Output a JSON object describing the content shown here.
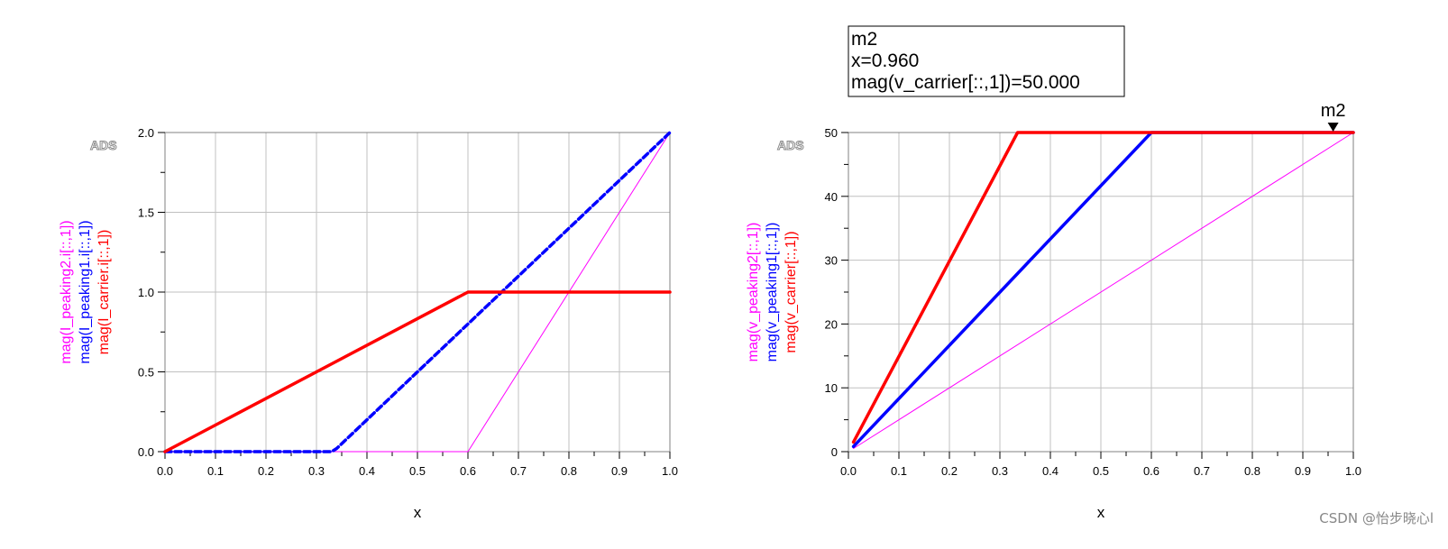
{
  "watermark": "CSDN @怡步晓心l",
  "chart_data": [
    {
      "type": "line",
      "logo": "ADS",
      "xlabel": "x",
      "ylabels": [
        "mag(I_peaking2.i[::,1])",
        "mag(I_peaking1.i[::,1])",
        "mag(I_carrier.i[::,1])"
      ],
      "xlim": [
        0.0,
        1.0
      ],
      "ylim": [
        0.0,
        2.0
      ],
      "xticks": [
        "0.0",
        "0.1",
        "0.2",
        "0.3",
        "0.4",
        "0.5",
        "0.6",
        "0.7",
        "0.8",
        "0.9",
        "1.0"
      ],
      "yticks": [
        "0.0",
        "0.5",
        "1.0",
        "1.5",
        "2.0"
      ],
      "grid": true,
      "series": [
        {
          "name": "mag(I_peaking2.i[::,1])",
          "color": "#ff00ff",
          "style": "thin",
          "x": [
            0.0,
            0.6,
            1.0
          ],
          "y": [
            0.0,
            0.0,
            2.0
          ]
        },
        {
          "name": "mag(I_peaking1.i[::,1])",
          "color": "#0000ff",
          "style": "dashed",
          "x": [
            0.0,
            0.33,
            0.34,
            1.0
          ],
          "y": [
            0.0,
            0.0,
            0.02,
            2.0
          ]
        },
        {
          "name": "mag(I_carrier.i[::,1])",
          "color": "#ff0000",
          "style": "thick",
          "x": [
            0.0,
            0.6,
            1.0
          ],
          "y": [
            0.0,
            1.0,
            1.0
          ]
        }
      ]
    },
    {
      "type": "line",
      "logo": "ADS",
      "xlabel": "x",
      "ylabels": [
        "mag(v_peaking2[::,1])",
        "mag(v_peaking1[::,1])",
        "mag(v_carrier[::,1])"
      ],
      "xlim": [
        0.0,
        1.0
      ],
      "ylim": [
        0,
        50
      ],
      "xticks": [
        "0.0",
        "0.1",
        "0.2",
        "0.3",
        "0.4",
        "0.5",
        "0.6",
        "0.7",
        "0.8",
        "0.9",
        "1.0"
      ],
      "yticks": [
        "0",
        "10",
        "20",
        "30",
        "40",
        "50"
      ],
      "grid": true,
      "series": [
        {
          "name": "mag(v_peaking2[::,1])",
          "color": "#ff00ff",
          "style": "thin",
          "x": [
            0.01,
            1.0
          ],
          "y": [
            0.5,
            50
          ]
        },
        {
          "name": "mag(v_peaking1[::,1])",
          "color": "#0000ff",
          "style": "thick",
          "x": [
            0.01,
            0.6,
            1.0
          ],
          "y": [
            0.8,
            50,
            50
          ]
        },
        {
          "name": "mag(v_carrier[::,1])",
          "color": "#ff0000",
          "style": "thick",
          "x": [
            0.01,
            0.335,
            1.0
          ],
          "y": [
            1.5,
            50,
            50
          ]
        }
      ],
      "marker": {
        "name": "m2",
        "x": 0.96,
        "y": 50.0,
        "lines": [
          "m2",
          "x=0.960",
          "mag(v_carrier[::,1])=50.000"
        ]
      }
    }
  ]
}
